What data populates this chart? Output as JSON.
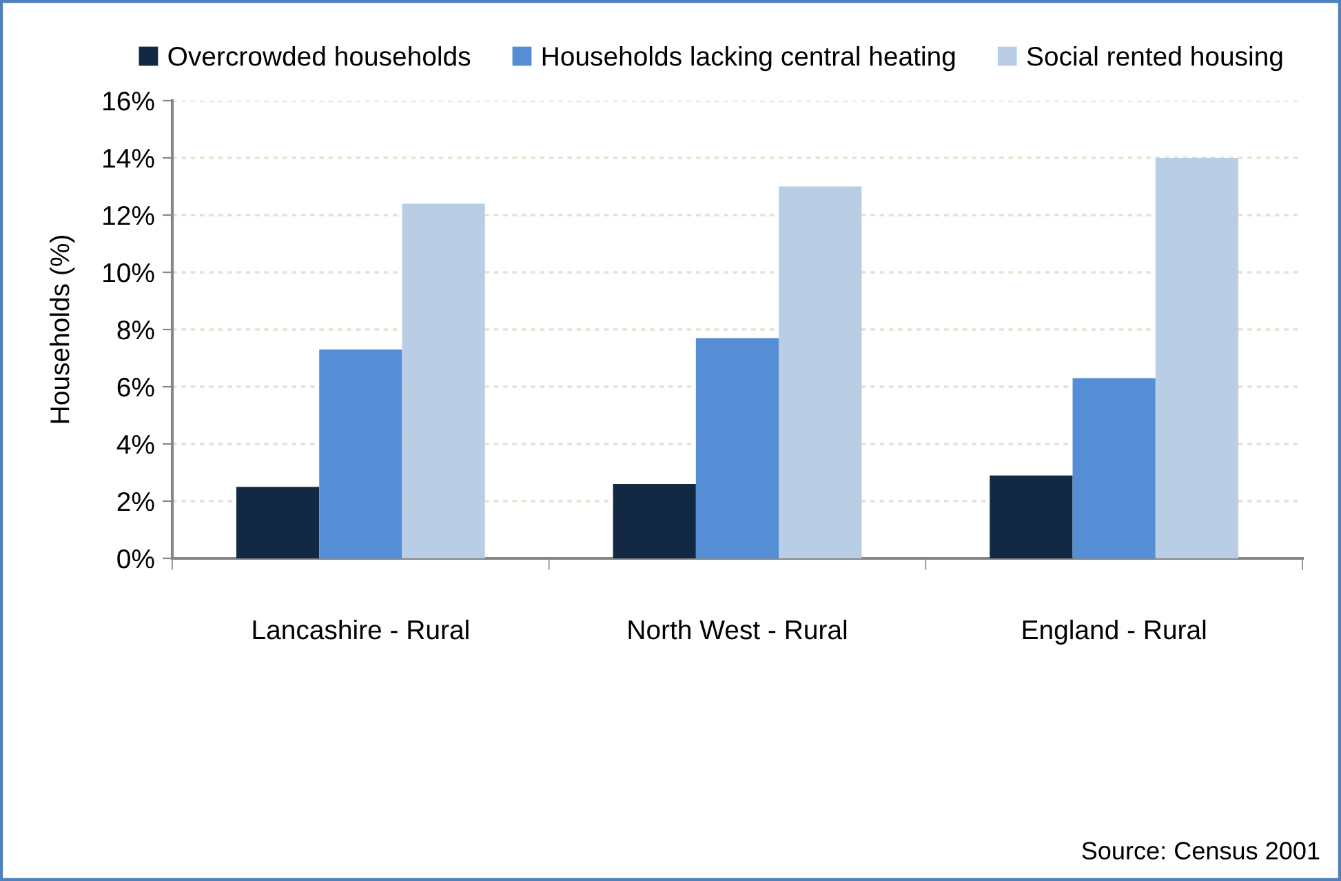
{
  "chart_data": {
    "type": "bar",
    "categories": [
      "Lancashire - Rural",
      "North West - Rural",
      "England - Rural"
    ],
    "series": [
      {
        "name": "Overcrowded households",
        "color": "#132843",
        "values": [
          2.5,
          2.6,
          2.9
        ]
      },
      {
        "name": "Households lacking central heating",
        "color": "#558ed5",
        "values": [
          7.3,
          7.7,
          6.3
        ]
      },
      {
        "name": "Social rented housing",
        "color": "#b9cde5",
        "values": [
          12.4,
          13.0,
          14.0
        ]
      }
    ],
    "ylabel": "Households (%)",
    "ylim": [
      0,
      16
    ],
    "yticks": [
      {
        "value": 0,
        "label": "0%"
      },
      {
        "value": 2,
        "label": "2%"
      },
      {
        "value": 4,
        "label": "4%"
      },
      {
        "value": 6,
        "label": "6%"
      },
      {
        "value": 8,
        "label": "8%"
      },
      {
        "value": 10,
        "label": "10%"
      },
      {
        "value": 12,
        "label": "12%"
      },
      {
        "value": 14,
        "label": "14%"
      },
      {
        "value": 16,
        "label": "16%"
      }
    ],
    "grid": "y",
    "legend": "top",
    "annotations": [
      "Source: Census 2001"
    ]
  }
}
